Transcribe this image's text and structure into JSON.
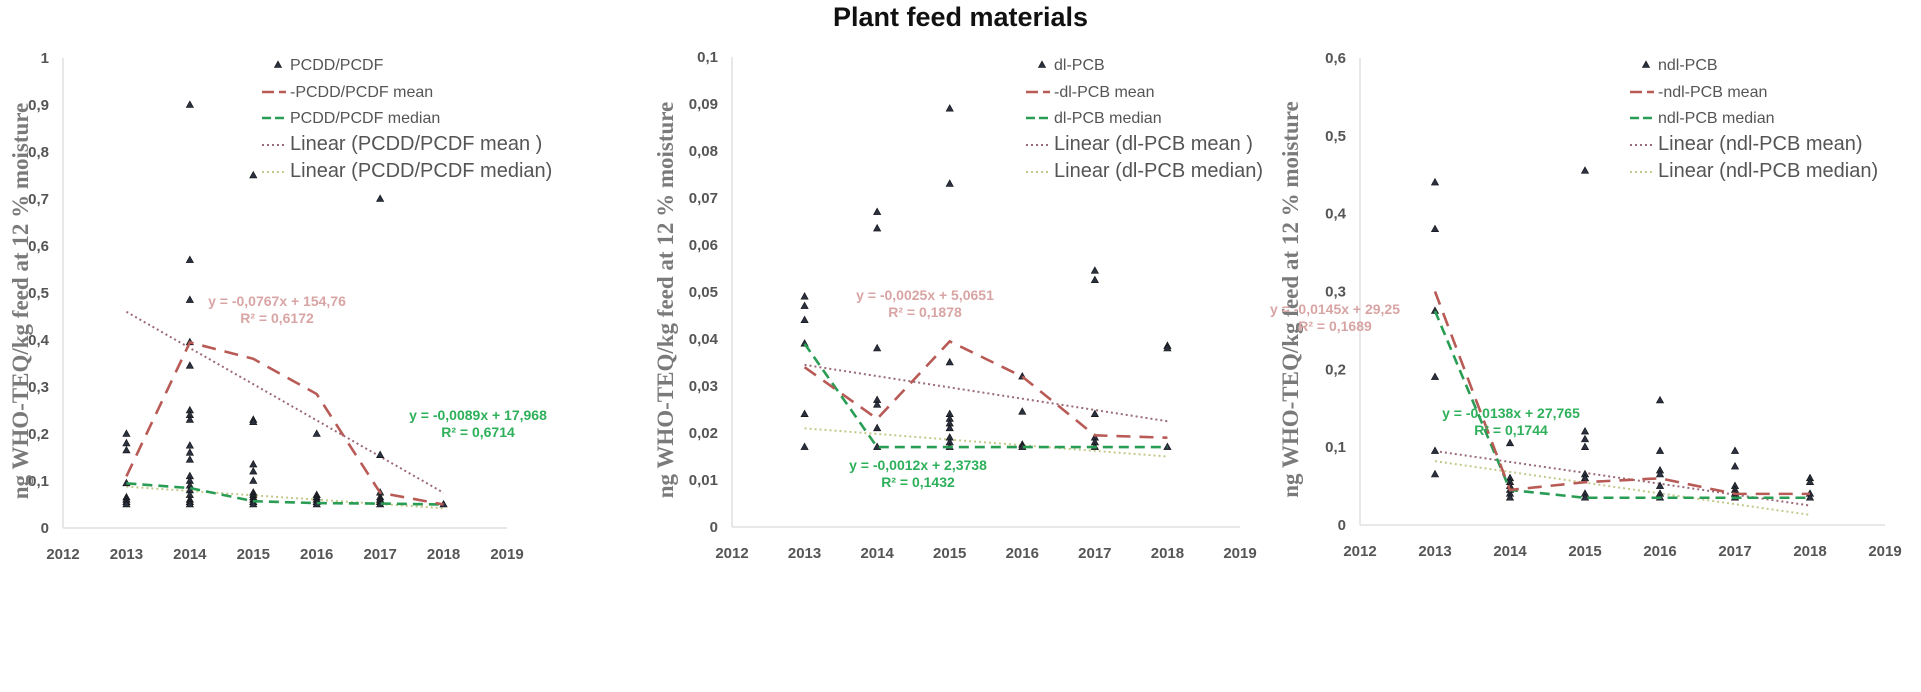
{
  "title": "Plant feed materials",
  "colors": {
    "points": "#2b3140",
    "mean": "#b85a55",
    "median": "#2a9d55",
    "trend_mean": "#9a6a78",
    "trend_median": "#c4c98a",
    "eq_mean": "#d8a4a4",
    "eq_median": "#2eb05a",
    "axis_text": "#555555",
    "ylabel": "#7a7a7a"
  },
  "chart_data": [
    {
      "type": "scatter",
      "ylabel": "ng WHO-TEQ/kg feed at 12 % moisture",
      "xlim": [
        2012,
        2019
      ],
      "ylim": [
        0,
        1
      ],
      "x_ticks": [
        "2012",
        "2013",
        "2014",
        "2015",
        "2016",
        "2017",
        "2018",
        "2019"
      ],
      "y_ticks": [
        "0",
        "0,1",
        "0,2",
        "0,3",
        "0,4",
        "0,5",
        "0,6",
        "0,7",
        "0,8",
        "0,9",
        "1"
      ],
      "y_tick_values": [
        0,
        0.1,
        0.2,
        0.3,
        0.4,
        0.5,
        0.6,
        0.7,
        0.8,
        0.9,
        1
      ],
      "grid": false,
      "legend_position": "top-right",
      "legend": [
        "PCDD/PCDF",
        "-PCDD/PCDF mean",
        "PCDD/PCDF median",
        "Linear (PCDD/PCDF mean )",
        "Linear (PCDD/PCDF  median)"
      ],
      "points": [
        [
          2013,
          [
            0.2,
            0.18,
            0.165,
            0.095,
            0.065,
            0.06,
            0.055,
            0.05
          ]
        ],
        [
          2014,
          [
            0.9,
            0.57,
            0.485,
            0.395,
            0.345,
            0.25,
            0.24,
            0.23,
            0.175,
            0.16,
            0.145,
            0.11,
            0.1,
            0.09,
            0.08,
            0.07,
            0.06,
            0.055,
            0.05
          ]
        ],
        [
          2015,
          [
            0.75,
            0.23,
            0.225,
            0.135,
            0.12,
            0.1,
            0.075,
            0.07,
            0.065,
            0.06,
            0.055,
            0.05
          ]
        ],
        [
          2016,
          [
            0.2,
            0.07,
            0.065,
            0.06,
            0.055,
            0.05
          ]
        ],
        [
          2017,
          [
            0.7,
            0.155,
            0.075,
            0.065,
            0.06,
            0.055,
            0.05
          ]
        ],
        [
          2018,
          [
            0.05
          ]
        ]
      ],
      "years": [
        2013,
        2014,
        2015,
        2016,
        2017,
        2018
      ],
      "mean": [
        0.11,
        0.395,
        0.36,
        0.285,
        0.075,
        0.05
      ],
      "median": [
        0.095,
        0.085,
        0.057,
        0.053,
        0.052,
        0.05
      ],
      "trend_mean": [
        [
          2013,
          0.46
        ],
        [
          2018,
          0.075
        ]
      ],
      "trend_median": [
        [
          2013,
          0.088
        ],
        [
          2018,
          0.042
        ]
      ],
      "eq_mean": [
        "y = -0,0767x + 154,76",
        "R² = 0,6172"
      ],
      "eq_median": [
        "y = -0,0089x + 17,968",
        "R² = 0,6714"
      ]
    },
    {
      "type": "scatter",
      "ylabel": "ng WHO-TEQ/kg feed at 12 % moisture",
      "xlim": [
        2012,
        2019
      ],
      "ylim": [
        0,
        0.1
      ],
      "x_ticks": [
        "2012",
        "2013",
        "2014",
        "2015",
        "2016",
        "2017",
        "2018",
        "2019"
      ],
      "y_ticks": [
        "0",
        "0,01",
        "0,02",
        "0,03",
        "0,04",
        "0,05",
        "0,06",
        "0,07",
        "0,08",
        "0,09",
        "0,1"
      ],
      "y_tick_values": [
        0,
        0.01,
        0.02,
        0.03,
        0.04,
        0.05,
        0.06,
        0.07,
        0.08,
        0.09,
        0.1
      ],
      "grid": false,
      "legend_position": "top-right",
      "legend": [
        "dl-PCB",
        "-dl-PCB mean",
        "dl-PCB  median",
        "Linear (dl-PCB mean )",
        "Linear (dl-PCB median)"
      ],
      "points": [
        [
          2013,
          [
            0.049,
            0.047,
            0.044,
            0.039,
            0.024,
            0.017
          ]
        ],
        [
          2014,
          [
            0.067,
            0.0635,
            0.038,
            0.027,
            0.026,
            0.021,
            0.017
          ]
        ],
        [
          2015,
          [
            0.089,
            0.073,
            0.035,
            0.024,
            0.023,
            0.022,
            0.021,
            0.019,
            0.018,
            0.017
          ]
        ],
        [
          2016,
          [
            0.032,
            0.0245,
            0.0175,
            0.017
          ]
        ],
        [
          2017,
          [
            0.0545,
            0.0525,
            0.024,
            0.019,
            0.018,
            0.017
          ]
        ],
        [
          2018,
          [
            0.0385,
            0.038,
            0.017
          ]
        ]
      ],
      "years": [
        2013,
        2014,
        2015,
        2016,
        2017,
        2018
      ],
      "mean": [
        0.034,
        0.023,
        0.0395,
        0.032,
        0.0195,
        0.019
      ],
      "median": [
        0.039,
        0.017,
        0.017,
        0.017,
        0.017,
        0.017
      ],
      "trend_mean": [
        [
          2013,
          0.0345
        ],
        [
          2018,
          0.0225
        ]
      ],
      "trend_median": [
        [
          2013,
          0.021
        ],
        [
          2018,
          0.015
        ]
      ],
      "eq_mean": [
        "y = -0,0025x + 5,0651",
        "R² = 0,1878"
      ],
      "eq_median": [
        "y = -0,0012x + 2,3738",
        "R² = 0,1432"
      ]
    },
    {
      "type": "scatter",
      "ylabel": "ng WHO-TEQ/kg feed at 12 % moisture",
      "xlim": [
        2012,
        2019
      ],
      "ylim": [
        0,
        0.6
      ],
      "x_ticks": [
        "2012",
        "2013",
        "2014",
        "2015",
        "2016",
        "2017",
        "2018",
        "2019"
      ],
      "y_ticks": [
        "0",
        "0,1",
        "0,2",
        "0,3",
        "0,4",
        "0,5",
        "0,6"
      ],
      "y_tick_values": [
        0,
        0.1,
        0.2,
        0.3,
        0.4,
        0.5,
        0.6
      ],
      "grid": false,
      "legend_position": "top-right",
      "legend": [
        "ndl-PCB",
        "-ndl-PCB mean",
        "ndl-PCB median",
        "Linear (ndl-PCB mean)",
        "Linear (ndl-PCB median)"
      ],
      "points": [
        [
          2013,
          [
            0.44,
            0.38,
            0.275,
            0.19,
            0.095,
            0.065
          ]
        ],
        [
          2014,
          [
            0.105,
            0.06,
            0.055,
            0.05,
            0.045,
            0.04,
            0.035
          ]
        ],
        [
          2015,
          [
            0.455,
            0.12,
            0.11,
            0.1,
            0.065,
            0.06,
            0.04,
            0.035
          ]
        ],
        [
          2016,
          [
            0.16,
            0.095,
            0.07,
            0.065,
            0.05,
            0.04,
            0.035
          ]
        ],
        [
          2017,
          [
            0.095,
            0.075,
            0.05,
            0.045,
            0.04,
            0.035
          ]
        ],
        [
          2018,
          [
            0.06,
            0.055,
            0.04,
            0.035
          ]
        ]
      ],
      "years": [
        2013,
        2014,
        2015,
        2016,
        2017,
        2018
      ],
      "mean": [
        0.3,
        0.045,
        0.055,
        0.06,
        0.04,
        0.04
      ],
      "median": [
        0.275,
        0.045,
        0.035,
        0.035,
        0.035,
        0.035
      ],
      "trend_mean": [
        [
          2013,
          0.095
        ],
        [
          2018,
          0.025
        ]
      ],
      "trend_median": [
        [
          2013,
          0.082
        ],
        [
          2018,
          0.013
        ]
      ],
      "eq_mean": [
        "y = -0,0145x + 29,25",
        "R² = 0,1689"
      ],
      "eq_median": [
        "y = -0,0138x + 27,765",
        "R² = 0,1744"
      ]
    }
  ]
}
